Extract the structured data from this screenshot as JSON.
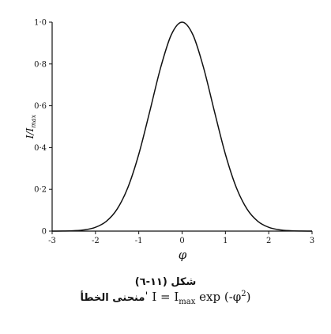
{
  "chart_data": {
    "type": "line",
    "title": "",
    "xlabel": "φ",
    "ylabel": "I/I_max",
    "ylabel_main": "I/I",
    "ylabel_sub": "max",
    "xlim": [
      -3,
      3
    ],
    "ylim": [
      0,
      1.0
    ],
    "xticks": [
      -3,
      -2,
      -1,
      0,
      1,
      2,
      3
    ],
    "xtick_labels": [
      "-3",
      "-2",
      "-1",
      "0",
      "1",
      "2",
      "3"
    ],
    "yticks": [
      0,
      0.2,
      0.4,
      0.6,
      0.8,
      1.0
    ],
    "ytick_labels": [
      "0",
      "0·2",
      "0·4",
      "0·6",
      "0·8",
      "1·0"
    ],
    "grid": false,
    "series": [
      {
        "x": [
          -3,
          -2.75,
          -2.5,
          -2.25,
          -2,
          -1.75,
          -1.5,
          -1.25,
          -1,
          -0.75,
          -0.5,
          -0.25,
          0,
          0.25,
          0.5,
          0.75,
          1,
          1.25,
          1.5,
          1.75,
          2,
          2.25,
          2.5,
          2.75,
          3
        ],
        "y": [
          0.0001,
          0.0005,
          0.0019,
          0.0063,
          0.0183,
          0.0468,
          0.1054,
          0.2096,
          0.3679,
          0.5698,
          0.7788,
          0.9394,
          1.0,
          0.9394,
          0.7788,
          0.5698,
          0.3679,
          0.2096,
          0.1054,
          0.0468,
          0.0183,
          0.0063,
          0.0019,
          0.0005,
          0.0001
        ]
      }
    ]
  },
  "caption": {
    "figure_label": "شكل (١١-٦)",
    "formula_text": "I = I",
    "formula_sub": "max",
    "formula_mid": " exp (-φ",
    "formula_sup": "2",
    "formula_end": ")",
    "arabic_text": "منحنى الخطأ"
  }
}
